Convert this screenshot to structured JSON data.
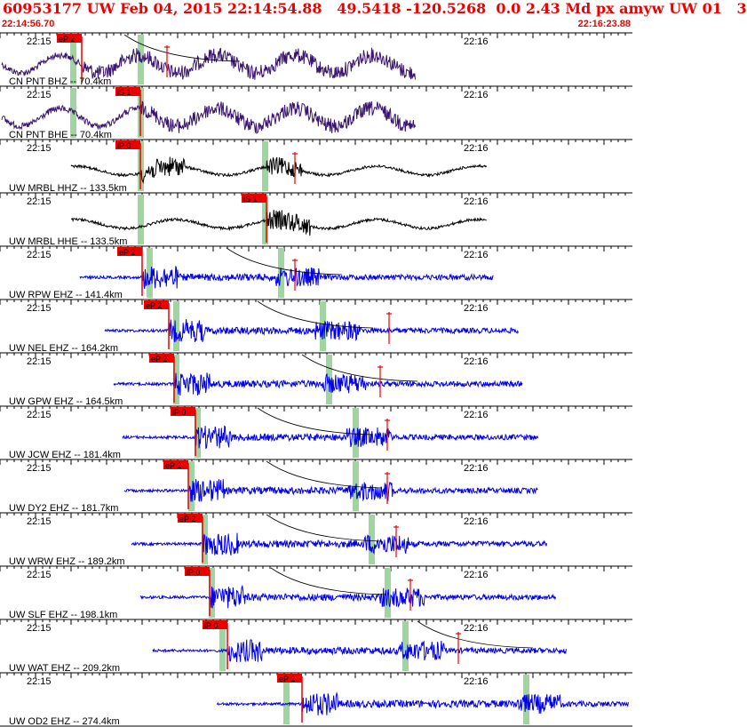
{
  "header": {
    "title": "60953177 UW Feb 04, 2015 22:14:54.88   49.5418 -120.5268  0.0 2.43 Md px amyw UW 01   3",
    "start_time": "22:14:56.70",
    "end_time": "22:16:23.88"
  },
  "tick_labels": {
    "first": "22:15",
    "second": "22:16"
  },
  "colors": {
    "header": "#ee0000",
    "pick": "#ee0000",
    "trace_velocity": "#3a1470",
    "trace_black": "#000000",
    "trace_blue": "#0000ee",
    "window": "#9fd59f"
  },
  "traces": [
    {
      "label": "CN PNT BHZ -- 70.4km",
      "pick": "eP 2",
      "color": "trace_velocity"
    },
    {
      "label": "CN PNT BHE -- 70.4km",
      "pick": "iS 1",
      "color": "trace_velocity"
    },
    {
      "label": "UW MRBL HHZ -- 133.5km",
      "pick": "iP 0",
      "color": "trace_black"
    },
    {
      "label": "UW MRBL HHE -- 133.5km",
      "pick": "iS 1",
      "color": "trace_black"
    },
    {
      "label": "UW RPW EHZ -- 141.4km",
      "pick": "eP 2",
      "color": "trace_blue"
    },
    {
      "label": "UW NEL EHZ -- 164.2km",
      "pick": "eP 2",
      "color": "trace_blue"
    },
    {
      "label": "UW GPW EHZ -- 164.5km",
      "pick": "eP 2",
      "color": "trace_blue"
    },
    {
      "label": "UW JCW EHZ -- 181.4km",
      "pick": "iP 0",
      "color": "trace_blue"
    },
    {
      "label": "UW DY2 EHZ -- 181.7km",
      "pick": "eP 2",
      "color": "trace_blue"
    },
    {
      "label": "UW WRW EHZ -- 189.2km",
      "pick": "eP 2",
      "color": "trace_blue"
    },
    {
      "label": "UW SLF EHZ -- 198.1km",
      "pick": "iP 0",
      "color": "trace_blue"
    },
    {
      "label": "UW WAT EHZ -- 209.2km",
      "pick": "iP 0",
      "color": "trace_blue"
    },
    {
      "label": "UW OD2 EHZ -- 274.4km",
      "pick": "eP 2",
      "color": "trace_blue"
    }
  ]
}
